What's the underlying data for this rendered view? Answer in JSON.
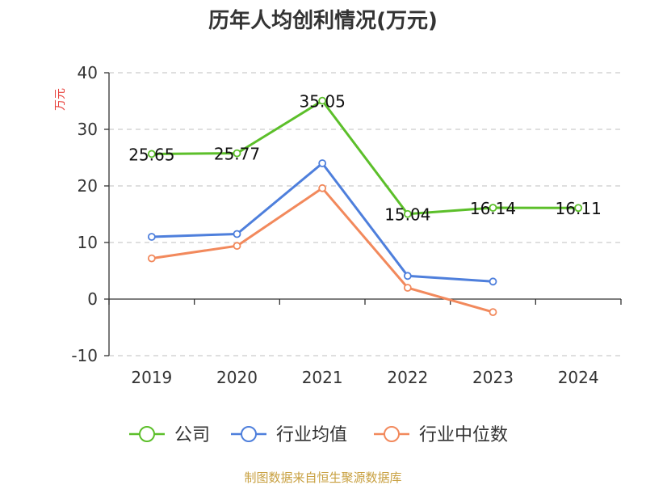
{
  "chart_data": {
    "type": "line",
    "title": "历年人均创利情况(万元)",
    "ylabel": "万元",
    "xlabel": "",
    "categories": [
      "2019",
      "2020",
      "2021",
      "2022",
      "2023",
      "2024"
    ],
    "ylim": [
      -10,
      40
    ],
    "yticks": [
      "40",
      "30",
      "20",
      "10",
      "0",
      "-10"
    ],
    "grid": true,
    "legend_position": "bottom",
    "series": [
      {
        "name": "公司",
        "color": "#5cbf2a",
        "values": [
          25.65,
          25.77,
          35.05,
          15.04,
          16.14,
          16.11
        ],
        "labels": [
          "25.65",
          "25.77",
          "35.05",
          "15.04",
          "16.14",
          "16.11"
        ]
      },
      {
        "name": "行业均值",
        "color": "#4e7fdc",
        "values": [
          11.0,
          11.5,
          24.0,
          4.1,
          3.1,
          null
        ]
      },
      {
        "name": "行业中位数",
        "color": "#f2895c",
        "values": [
          7.2,
          9.4,
          19.6,
          2.0,
          -2.3,
          null
        ]
      }
    ]
  },
  "source_text": "制图数据来自恒生聚源数据库"
}
